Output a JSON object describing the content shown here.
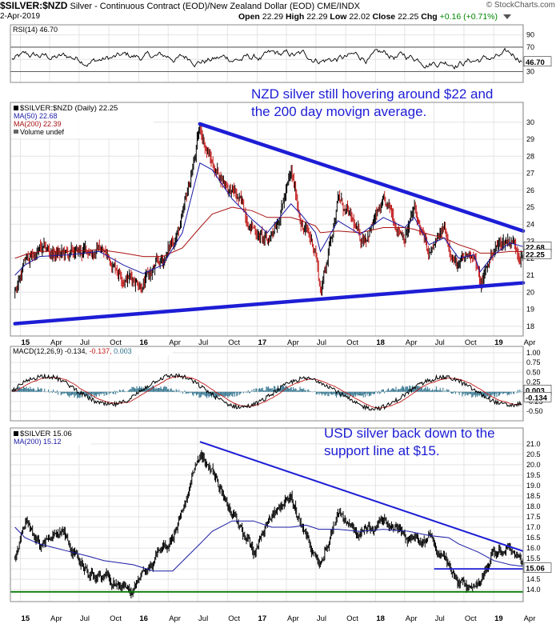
{
  "header": {
    "symbol": "$SILVER:$NZD",
    "description": "Silver - Continuous Contract (EOD)/New Zealand Dollar (EOD) CME/INDX",
    "source": "© StockCharts.com",
    "date": "2-Apr-2019",
    "open_label": "Open",
    "open": "22.29",
    "high_label": "High",
    "high": "22.29",
    "low_label": "Low",
    "low": "22.02",
    "close_label": "Close",
    "close": "22.25",
    "chg_label": "Chg",
    "chg": "+0.16 (+0.71%)"
  },
  "colors": {
    "price": "#000000",
    "ma50": "#1a1aa6",
    "ma200": "#aa1111",
    "trendline": "#1d1dd6",
    "support": "#0a7a0a",
    "grid": "#e4e4e4",
    "macd_hist": "#2b6f8a",
    "annotation": "#1d1dd6"
  },
  "chart_data": [
    {
      "type": "line",
      "panel": "rsi",
      "legend": "RSI(14) 46.70",
      "ylim": [
        15,
        100
      ],
      "y_ticks": [
        "90",
        "70",
        "50",
        "30"
      ],
      "reference_lines": [
        70,
        30
      ],
      "last_value": "46.70",
      "x_start": "2014-12-01",
      "x_end": "2019-04-02"
    },
    {
      "type": "line",
      "panel": "nzd_silver",
      "legend": [
        "$SILVER:$NZD (Daily) 22.25",
        "MA(50) 22.68",
        "MA(200) 22.39",
        "Volume undef"
      ],
      "ylim": [
        17.8,
        30.6
      ],
      "y_ticks": [
        "30",
        "29",
        "28",
        "27",
        "26",
        "25",
        "24",
        "23",
        "22",
        "21",
        "20",
        "19",
        "18"
      ],
      "last_values": [
        "22.68",
        "22.25"
      ],
      "x": [
        "2014-12-15",
        "2015-01-15",
        "2015-03-01",
        "2015-06-01",
        "2015-09-01",
        "2015-11-15",
        "2016-01-15",
        "2016-03-15",
        "2016-05-15",
        "2016-07-08",
        "2016-08-15",
        "2016-10-15",
        "2016-12-15",
        "2017-02-01",
        "2017-04-15",
        "2017-05-20",
        "2017-06-30",
        "2017-07-15",
        "2017-09-07",
        "2017-11-15",
        "2018-01-25",
        "2018-04-01",
        "2018-05-01",
        "2018-06-15",
        "2018-08-01",
        "2018-09-15",
        "2018-11-01",
        "2018-11-20",
        "2019-01-01",
        "2019-02-20",
        "2019-04-02"
      ],
      "close": [
        20.0,
        21.8,
        22.4,
        22.1,
        22.6,
        21.1,
        20.6,
        21.8,
        24.2,
        29.6,
        27.5,
        26.0,
        24.0,
        22.8,
        26.8,
        24.0,
        22.5,
        20.0,
        25.6,
        23.0,
        25.0,
        23.5,
        24.8,
        22.0,
        23.6,
        21.4,
        22.5,
        20.3,
        22.6,
        23.2,
        22.25
      ],
      "ma50": [
        21.0,
        21.6,
        22.1,
        22.2,
        22.4,
        21.6,
        21.1,
        21.6,
        23.5,
        27.6,
        27.2,
        25.5,
        24.3,
        23.5,
        25.2,
        24.5,
        23.5,
        22.4,
        24.2,
        23.4,
        24.4,
        23.8,
        24.4,
        22.8,
        23.2,
        22.0,
        22.2,
        21.2,
        22.2,
        22.9,
        22.68
      ],
      "ma200": [
        22.0,
        22.2,
        22.4,
        22.4,
        22.5,
        22.3,
        22.1,
        22.1,
        22.6,
        23.8,
        24.6,
        25.0,
        24.8,
        24.4,
        24.4,
        24.2,
        23.9,
        23.5,
        23.6,
        23.5,
        23.8,
        23.8,
        23.7,
        23.4,
        23.2,
        22.8,
        22.5,
        22.3,
        22.3,
        22.4,
        22.39
      ],
      "trendlines": [
        {
          "name": "upper",
          "from": [
            "2016-07-08",
            29.9
          ],
          "to": [
            "2019-04-02",
            23.6
          ]
        },
        {
          "name": "lower",
          "from": [
            "2014-12-15",
            18.15
          ],
          "to": [
            "2019-04-02",
            20.55
          ]
        }
      ],
      "annotation": [
        "NZD silver still hovering around $22 and",
        "the 200 day movign average."
      ]
    },
    {
      "type": "line",
      "panel": "macd",
      "legend": [
        "MACD(12,26,9)",
        "-0.134",
        "-0.137",
        "0.003"
      ],
      "ylim": [
        -0.6,
        1.06
      ],
      "y_ticks": [
        "1.00",
        "0.75",
        "0.50",
        "0.25",
        "0.00",
        "-0.25",
        "-0.50"
      ],
      "last_values": [
        "0.003",
        "-0.134"
      ],
      "x_start": "2014-12-01",
      "x_end": "2019-04-02"
    },
    {
      "type": "line",
      "panel": "usd_silver",
      "legend": [
        "$SILVER 15.06",
        "MA(200) 15.12"
      ],
      "ylim": [
        13.7,
        21.3
      ],
      "y_ticks": [
        "21.0",
        "20.5",
        "20.0",
        "19.5",
        "19.0",
        "18.5",
        "18.0",
        "17.5",
        "17.0",
        "16.5",
        "16.0",
        "15.5",
        "15.0",
        "14.5",
        "14.0"
      ],
      "last_value": "15.06",
      "x": [
        "2014-12-15",
        "2015-01-15",
        "2015-03-01",
        "2015-05-15",
        "2015-08-01",
        "2015-09-15",
        "2015-12-15",
        "2016-02-15",
        "2016-04-15",
        "2016-07-08",
        "2016-08-15",
        "2016-10-15",
        "2016-12-20",
        "2017-02-15",
        "2017-04-15",
        "2017-06-01",
        "2017-07-10",
        "2017-09-07",
        "2017-11-15",
        "2018-01-25",
        "2018-04-15",
        "2018-06-15",
        "2018-08-15",
        "2018-09-15",
        "2018-11-15",
        "2019-01-01",
        "2019-02-20",
        "2019-04-02"
      ],
      "close": [
        15.5,
        17.0,
        16.2,
        16.6,
        14.7,
        14.6,
        13.9,
        15.3,
        16.6,
        20.6,
        19.6,
        17.6,
        15.8,
        17.6,
        18.3,
        16.7,
        15.4,
        17.6,
        16.8,
        17.2,
        16.4,
        16.4,
        15.1,
        14.2,
        14.2,
        15.6,
        15.9,
        15.06
      ],
      "ma200": [
        17.0,
        16.5,
        16.2,
        15.9,
        15.6,
        15.4,
        15.2,
        14.9,
        14.9,
        16.2,
        16.8,
        17.3,
        17.3,
        17.0,
        17.0,
        17.1,
        16.9,
        16.9,
        16.8,
        16.9,
        16.8,
        16.6,
        16.5,
        16.2,
        15.8,
        15.4,
        15.2,
        15.12
      ],
      "trendlines": [
        {
          "name": "resistance",
          "from": [
            "2016-07-08",
            21.1
          ],
          "to": [
            "2019-04-02",
            15.85
          ]
        },
        {
          "name": "support-15",
          "from": [
            "2018-07-01",
            15.0
          ],
          "to": [
            "2019-04-02",
            15.0
          ]
        },
        {
          "name": "support-14",
          "from": [
            "2014-12-01",
            13.9
          ],
          "to": [
            "2019-04-02",
            13.9
          ]
        }
      ],
      "annotation": [
        "USD silver back down to the",
        "support line at $15."
      ]
    }
  ],
  "x_axis": {
    "ticks": [
      {
        "label": "15",
        "date": "2015-01-01",
        "bold": true
      },
      {
        "label": "Apr",
        "date": "2015-04-01"
      },
      {
        "label": "Jul",
        "date": "2015-07-01"
      },
      {
        "label": "Oct",
        "date": "2015-10-01"
      },
      {
        "label": "16",
        "date": "2016-01-01",
        "bold": true
      },
      {
        "label": "Apr",
        "date": "2016-04-01"
      },
      {
        "label": "Jul",
        "date": "2016-07-01"
      },
      {
        "label": "Oct",
        "date": "2016-10-01"
      },
      {
        "label": "17",
        "date": "2017-01-01",
        "bold": true
      },
      {
        "label": "Apr",
        "date": "2017-04-01"
      },
      {
        "label": "Jul",
        "date": "2017-07-01"
      },
      {
        "label": "Oct",
        "date": "2017-10-01"
      },
      {
        "label": "18",
        "date": "2018-01-01",
        "bold": true
      },
      {
        "label": "Apr",
        "date": "2018-04-01"
      },
      {
        "label": "Jul",
        "date": "2018-07-01"
      },
      {
        "label": "Oct",
        "date": "2018-10-01"
      },
      {
        "label": "19",
        "date": "2019-01-01",
        "bold": true
      },
      {
        "label": "Apr",
        "date": "2019-04-01"
      }
    ]
  }
}
